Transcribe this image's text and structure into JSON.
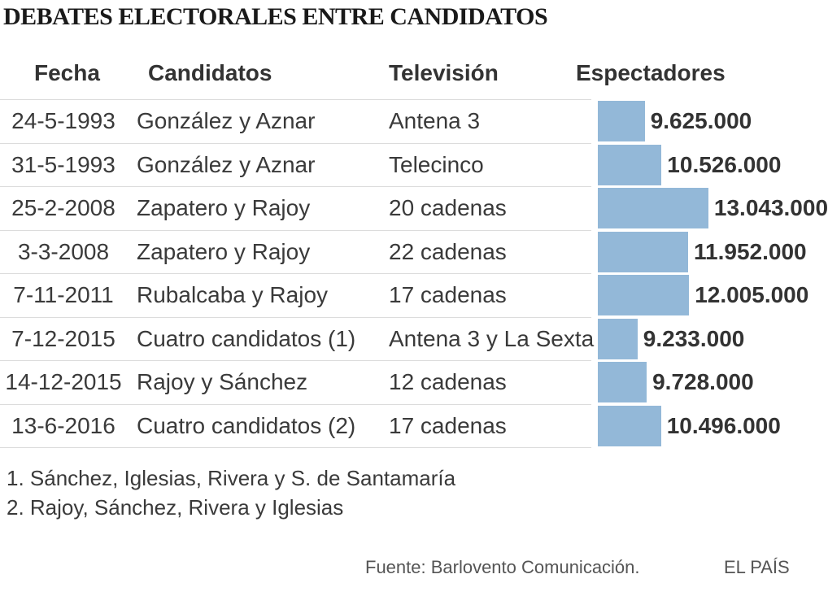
{
  "title": "DEBATES ELECTORALES ENTRE CANDIDATOS",
  "chart_data": {
    "type": "table",
    "columns": [
      "Fecha",
      "Candidatos",
      "Televisión",
      "Espectadores"
    ],
    "rows": [
      {
        "fecha": "24-5-1993",
        "candidatos": "González y Aznar",
        "television": "Antena 3",
        "espectadores": 9625000,
        "label": "9.625.000"
      },
      {
        "fecha": "31-5-1993",
        "candidatos": "González y Aznar",
        "television": "Telecinco",
        "espectadores": 10526000,
        "label": "10.526.000"
      },
      {
        "fecha": "25-2-2008",
        "candidatos": "Zapatero y Rajoy",
        "television": "20 cadenas",
        "espectadores": 13043000,
        "label": "13.043.000"
      },
      {
        "fecha": "3-3-2008",
        "candidatos": "Zapatero y Rajoy",
        "television": "22 cadenas",
        "espectadores": 11952000,
        "label": "11.952.000"
      },
      {
        "fecha": "7-11-2011",
        "candidatos": "Rubalcaba y Rajoy",
        "television": "17 cadenas",
        "espectadores": 12005000,
        "label": "12.005.000"
      },
      {
        "fecha": "7-12-2015",
        "candidatos": "Cuatro candidatos (1)",
        "television": "Antena 3 y La Sexta",
        "espectadores": 9233000,
        "label": "9.233.000"
      },
      {
        "fecha": "14-12-2015",
        "candidatos": "Rajoy y Sánchez",
        "television": "12 cadenas",
        "espectadores": 9728000,
        "label": "9.728.000"
      },
      {
        "fecha": "13-6-2016",
        "candidatos": "Cuatro candidatos (2)",
        "television": "17 cadenas",
        "espectadores": 10496000,
        "label": "10.496.000"
      }
    ],
    "bar_color": "#93b8d8"
  },
  "notes": [
    "1. Sánchez, Iglesias, Rivera y S. de Santamaría",
    "2. Rajoy, Sánchez, Rivera y Iglesias"
  ],
  "source": "Fuente: Barlovento Comunicación.",
  "brand": "EL PAÍS"
}
